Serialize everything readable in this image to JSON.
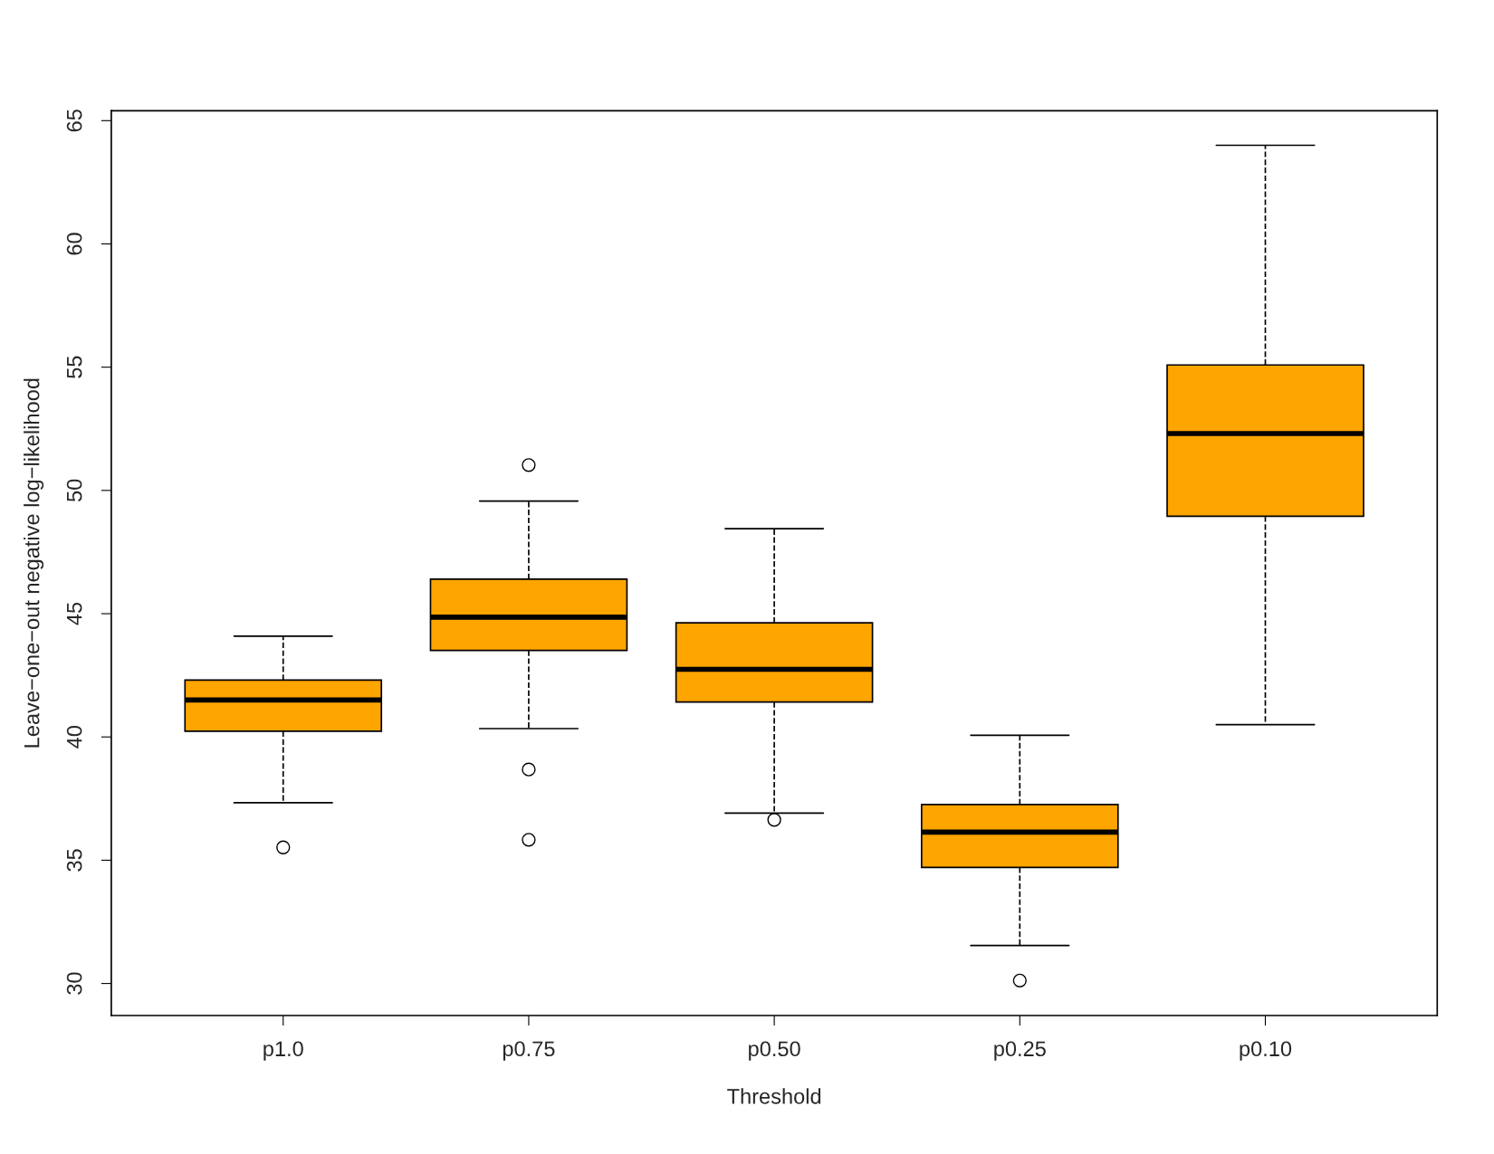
{
  "chart_data": {
    "type": "box",
    "xlabel": "Threshold",
    "ylabel": "Leave−one−out negative log−likelihood",
    "categories": [
      "p1.0",
      "p0.75",
      "p0.50",
      "p0.25",
      "p0.10"
    ],
    "color": "#ffa500",
    "boxes": [
      {
        "low": 37.33,
        "q1": 40.23,
        "median": 41.5,
        "q3": 42.31,
        "high": 44.09,
        "outliers": [
          35.52
        ]
      },
      {
        "low": 40.34,
        "q1": 43.51,
        "median": 44.86,
        "q3": 46.4,
        "high": 49.57,
        "outliers": [
          51.03,
          38.68,
          35.83
        ]
      },
      {
        "low": 36.91,
        "q1": 41.42,
        "median": 42.74,
        "q3": 44.63,
        "high": 48.45,
        "outliers": [
          36.64
        ]
      },
      {
        "low": 31.54,
        "q1": 34.71,
        "median": 36.14,
        "q3": 37.26,
        "high": 40.07,
        "outliers": [
          30.12
        ]
      },
      {
        "low": 40.5,
        "q1": 48.95,
        "median": 52.31,
        "q3": 55.09,
        "high": 64.0
      }
    ],
    "ylim": [
      28.7,
      65.4
    ],
    "yticks": [
      30,
      35,
      40,
      45,
      50,
      55,
      60,
      65
    ],
    "grid": false,
    "line_style": "dashed"
  }
}
